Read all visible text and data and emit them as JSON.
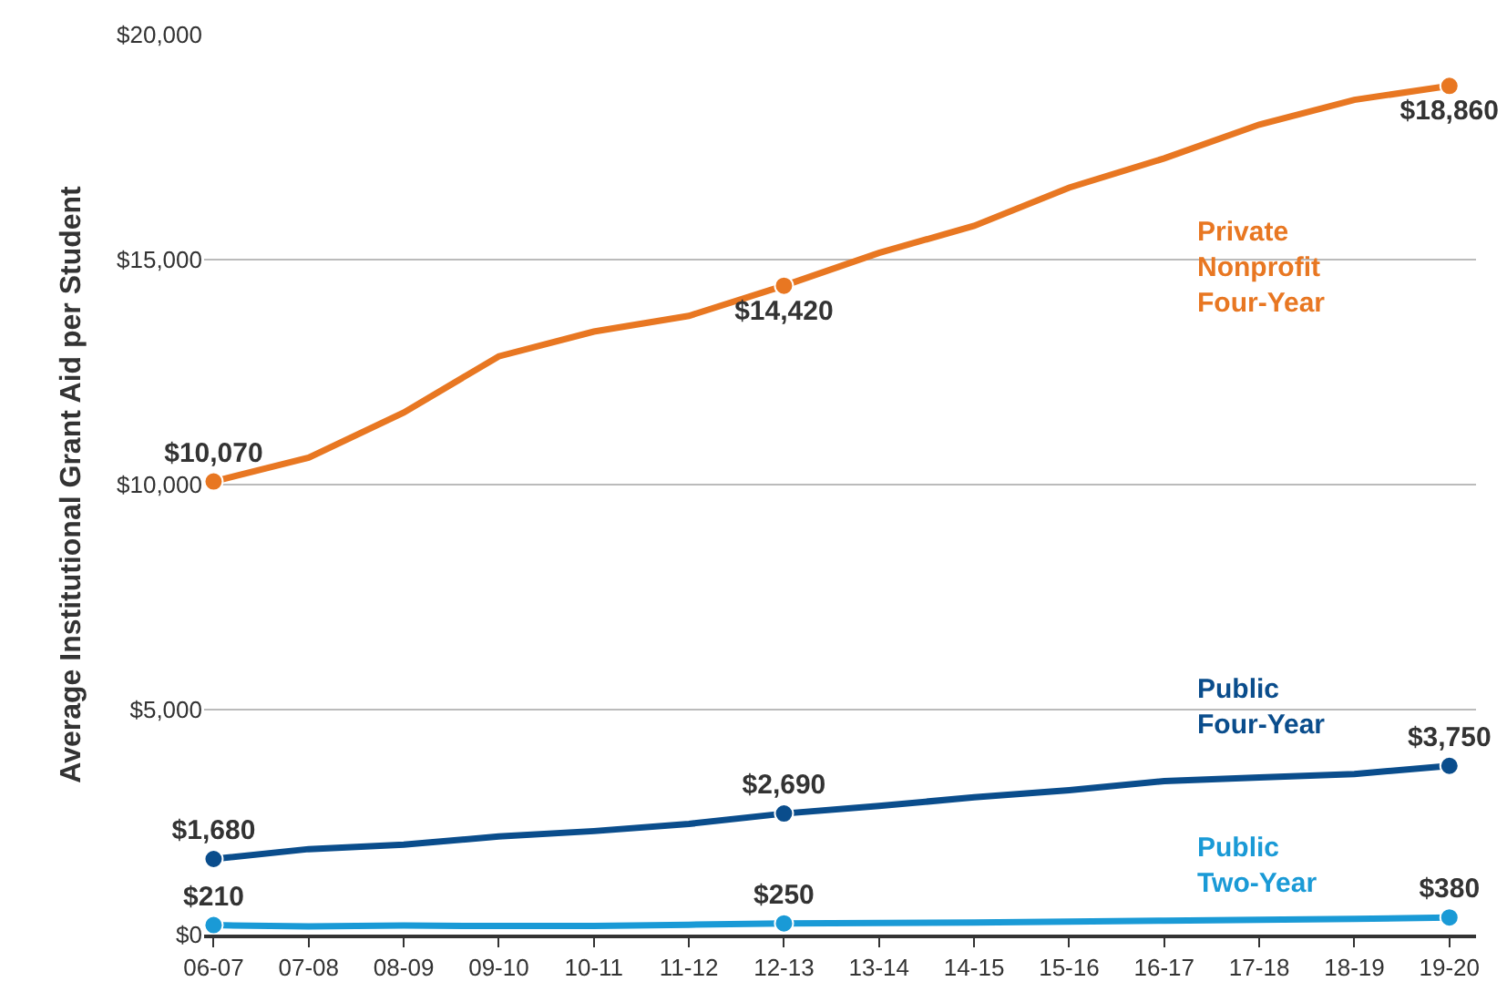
{
  "chart_data": {
    "type": "line",
    "ylabel": "Average Institutional Grant Aid per Student",
    "categories": [
      "06-07",
      "07-08",
      "08-09",
      "09-10",
      "10-11",
      "11-12",
      "12-13",
      "13-14",
      "14-15",
      "15-16",
      "16-17",
      "17-18",
      "18-19",
      "19-20"
    ],
    "series": [
      {
        "name": "Private Nonprofit Four-Year",
        "color": "#e87722",
        "values": [
          10070,
          10600,
          11600,
          12850,
          13400,
          13750,
          14420,
          15150,
          15750,
          16600,
          17250,
          18000,
          18550,
          18860
        ],
        "value_labels": [
          "$10,070",
          null,
          null,
          null,
          null,
          null,
          "$14,420",
          null,
          null,
          null,
          null,
          null,
          null,
          "$18,860"
        ]
      },
      {
        "name": "Public Four-Year",
        "color": "#0a4d8c",
        "values": [
          1680,
          1900,
          2000,
          2180,
          2300,
          2460,
          2690,
          2860,
          3050,
          3210,
          3410,
          3490,
          3570,
          3750
        ],
        "value_labels": [
          "$1,680",
          null,
          null,
          null,
          null,
          null,
          "$2,690",
          null,
          null,
          null,
          null,
          null,
          null,
          "$3,750"
        ]
      },
      {
        "name": "Public Two-Year",
        "color": "#1a9ad6",
        "values": [
          210,
          180,
          200,
          190,
          190,
          220,
          250,
          260,
          270,
          290,
          310,
          330,
          350,
          380
        ],
        "value_labels": [
          "$210",
          null,
          null,
          null,
          null,
          null,
          "$250",
          null,
          null,
          null,
          null,
          null,
          null,
          "$380"
        ]
      }
    ],
    "ylim": [
      0,
      20000
    ],
    "yticks": [
      {
        "value": 0,
        "label": "$0"
      },
      {
        "value": 5000,
        "label": "$5,000"
      },
      {
        "value": 10000,
        "label": "$10,000"
      },
      {
        "value": 15000,
        "label": "$15,000"
      },
      {
        "value": 20000,
        "label": "$20,000"
      }
    ],
    "grid": "y",
    "legend": false,
    "line_style": "solid"
  }
}
